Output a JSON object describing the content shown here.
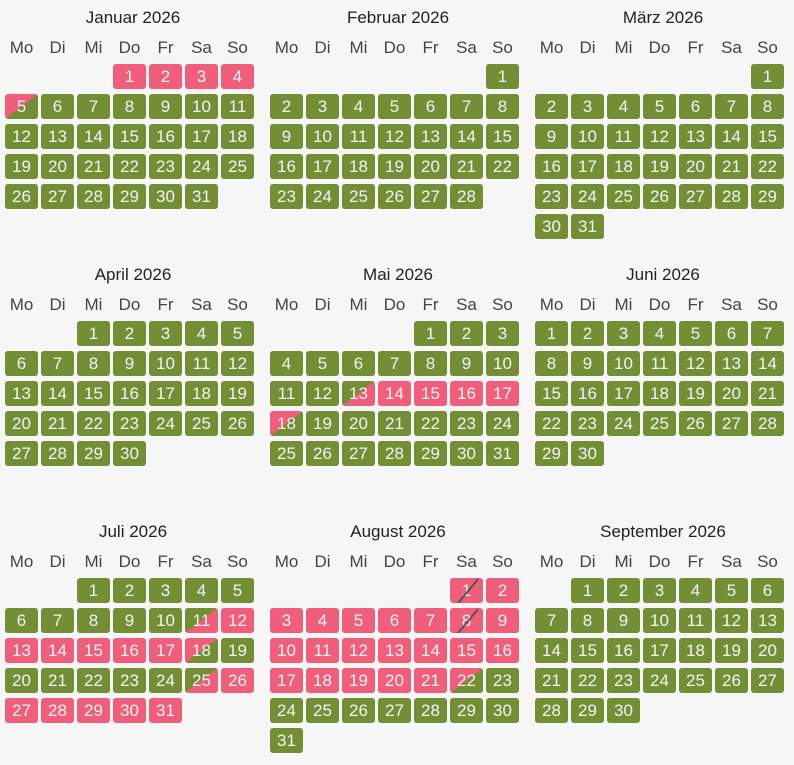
{
  "weekdays": [
    "Mo",
    "Di",
    "Mi",
    "Do",
    "Fr",
    "Sa",
    "So"
  ],
  "colors": {
    "free": "#748e35",
    "booked": "#ef5f7b"
  },
  "legend_codes": {
    "f": "free",
    "b": "booked",
    "a": "arrival",
    "d": "departure",
    "c": "changeover"
  },
  "months": [
    {
      "title": "Januar 2026",
      "start_weekday": 3,
      "days": "bbbbdffffffffffffffffffffffffff"
    },
    {
      "title": "Februar 2026",
      "start_weekday": 6,
      "days": "ffffffffffffffffffffffffffff"
    },
    {
      "title": "März 2026",
      "start_weekday": 6,
      "days": "fffffffffffffffffffffffffffffff"
    },
    {
      "title": "April 2026",
      "start_weekday": 2,
      "days": "ffffffffffffffffffffffffffffff"
    },
    {
      "title": "Mai 2026",
      "start_weekday": 4,
      "days": "ffffffffffffabbbbdfffffffffffff"
    },
    {
      "title": "Juni 2026",
      "start_weekday": 0,
      "days": "ffffffffffffffffffffffffffffff"
    },
    {
      "title": "Juli 2026",
      "start_weekday": 2,
      "days": "ffffffffffabbbbbbdffffffabbbbbb"
    },
    {
      "title": "August 2026",
      "start_weekday": 5,
      "days": "cbbbbbbcbbbbbbbbbbbbbdfffffffff"
    },
    {
      "title": "September 2026",
      "start_weekday": 1,
      "days": "ffffffffffffffffffffffffffffff"
    }
  ]
}
